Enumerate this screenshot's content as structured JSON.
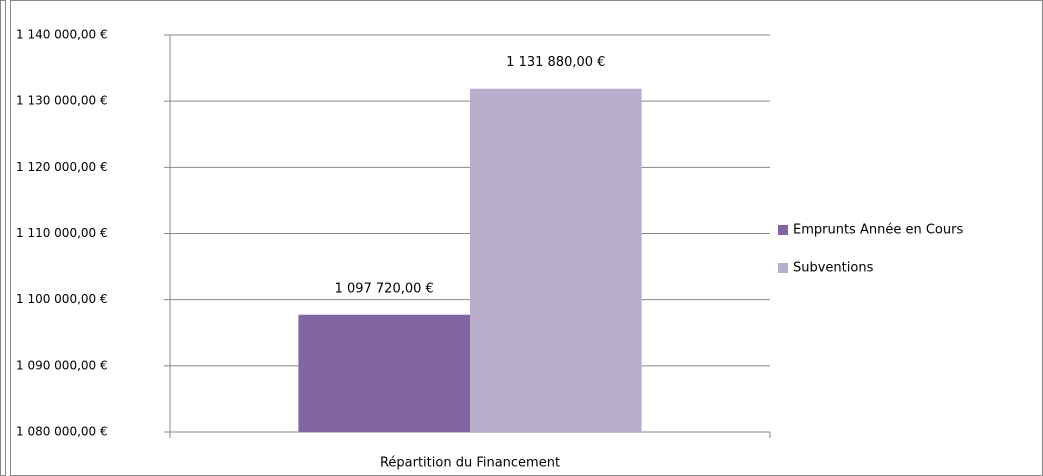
{
  "chart_data": {
    "type": "bar",
    "categories": [
      "Répartition du Financement"
    ],
    "series": [
      {
        "name": "Emprunts Année en Cours",
        "color": "#8166a3",
        "values": [
          1097720
        ],
        "value_labels": [
          "1 097 720,00 €"
        ]
      },
      {
        "name": "Subventions",
        "color": "#b9aecc",
        "values": [
          1131880
        ],
        "value_labels": [
          "1 131 880,00 €"
        ]
      }
    ],
    "ylim": [
      1080000,
      1140000
    ],
    "yticks": [
      {
        "value": 1080000,
        "label": "1 080 000,00 €"
      },
      {
        "value": 1090000,
        "label": "1 090 000,00 €"
      },
      {
        "value": 1100000,
        "label": "1 100 000,00 €"
      },
      {
        "value": 1110000,
        "label": "1 110 000,00 €"
      },
      {
        "value": 1120000,
        "label": "1 120 000,00 €"
      },
      {
        "value": 1130000,
        "label": "1 130 000,00 €"
      },
      {
        "value": 1140000,
        "label": "1 140 000,00 €"
      }
    ],
    "grid": true,
    "legend": "right"
  }
}
